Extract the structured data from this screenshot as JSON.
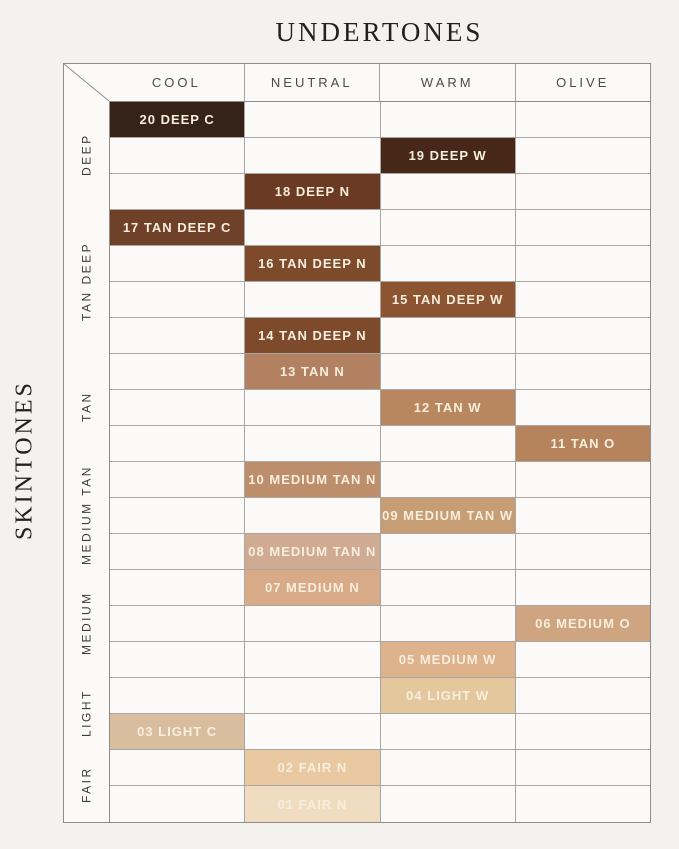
{
  "title": "UNDERTONES",
  "side_title": "SKINTONES",
  "chart_data": {
    "type": "table",
    "title": "UNDERTONES",
    "ylabel": "SKINTONES",
    "columns": [
      "COOL",
      "NEUTRAL",
      "WARM",
      "OLIVE"
    ],
    "row_groups": [
      {
        "label": "DEEP",
        "row_count": 3
      },
      {
        "label": "TAN DEEP",
        "row_count": 4
      },
      {
        "label": "TAN",
        "row_count": 3
      },
      {
        "label": "MEDIUM TAN",
        "row_count": 3
      },
      {
        "label": "MEDIUM",
        "row_count": 3
      },
      {
        "label": "LIGHT",
        "row_count": 2
      },
      {
        "label": "FAIR",
        "row_count": 2
      }
    ],
    "rows": [
      {
        "label": "20 DEEP C",
        "column": "COOL",
        "group": "DEEP",
        "swatch_color": "#352219"
      },
      {
        "label": "19 DEEP W",
        "column": "WARM",
        "group": "DEEP",
        "swatch_color": "#472818"
      },
      {
        "label": "18 DEEP N",
        "column": "NEUTRAL",
        "group": "DEEP",
        "swatch_color": "#6b3a23"
      },
      {
        "label": "17 TAN DEEP C",
        "column": "COOL",
        "group": "TAN DEEP",
        "swatch_color": "#6f4128"
      },
      {
        "label": "16 TAN DEEP N",
        "column": "NEUTRAL",
        "group": "TAN DEEP",
        "swatch_color": "#7d4a2c"
      },
      {
        "label": "15 TAN DEEP W",
        "column": "WARM",
        "group": "TAN DEEP",
        "swatch_color": "#8d5431"
      },
      {
        "label": "14 TAN DEEP N",
        "column": "NEUTRAL",
        "group": "TAN DEEP",
        "swatch_color": "#7d4a2c"
      },
      {
        "label": "13 TAN N",
        "column": "NEUTRAL",
        "group": "TAN",
        "swatch_color": "#b18162"
      },
      {
        "label": "12 TAN W",
        "column": "WARM",
        "group": "TAN",
        "swatch_color": "#b9875f"
      },
      {
        "label": "11 TAN O",
        "column": "OLIVE",
        "group": "TAN",
        "swatch_color": "#b5835c"
      },
      {
        "label": "10 MEDIUM TAN N",
        "column": "NEUTRAL",
        "group": "MEDIUM TAN",
        "swatch_color": "#bd8e6b"
      },
      {
        "label": "09 MEDIUM TAN W",
        "column": "WARM",
        "group": "MEDIUM TAN",
        "swatch_color": "#c79d74"
      },
      {
        "label": "08 MEDIUM TAN N",
        "column": "NEUTRAL",
        "group": "MEDIUM TAN",
        "swatch_color": "#d0ab93"
      },
      {
        "label": "07 MEDIUM N",
        "column": "NEUTRAL",
        "group": "MEDIUM",
        "swatch_color": "#d8aa87"
      },
      {
        "label": "06 MEDIUM O",
        "column": "OLIVE",
        "group": "MEDIUM",
        "swatch_color": "#cfa480"
      },
      {
        "label": "05 MEDIUM W",
        "column": "WARM",
        "group": "MEDIUM",
        "swatch_color": "#ddb28c"
      },
      {
        "label": "04 LIGHT W",
        "column": "WARM",
        "group": "LIGHT",
        "swatch_color": "#e5c79e"
      },
      {
        "label": "03 LIGHT C",
        "column": "COOL",
        "group": "LIGHT",
        "swatch_color": "#d9bd9f"
      },
      {
        "label": "02 FAIR N",
        "column": "NEUTRAL",
        "group": "FAIR",
        "swatch_color": "#e9c9a1"
      },
      {
        "label": "01 FAIR N",
        "column": "NEUTRAL",
        "group": "FAIR",
        "swatch_color": "#f0dcc0"
      }
    ]
  },
  "colors": {
    "page_background": "#f3f2ef",
    "cell_background": "#fbfaf9",
    "outer_border": "#8f8c87",
    "inner_grid_line": "#aaa7a2",
    "swatch_label_text": "#f7eedd",
    "header_text": "#4c4b49",
    "title_text": "#232120"
  }
}
